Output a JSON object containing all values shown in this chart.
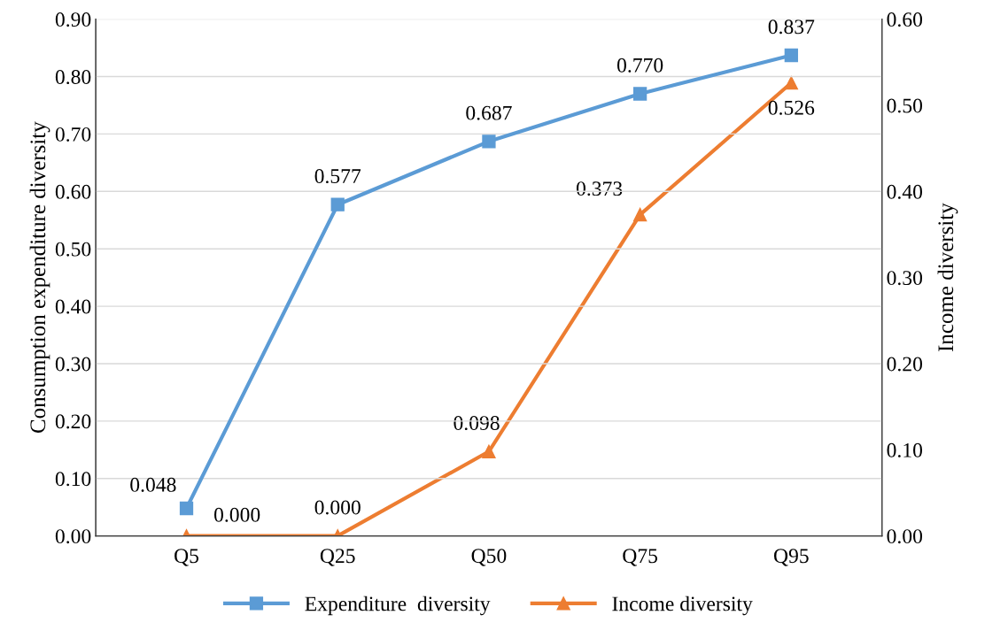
{
  "chart_data": {
    "type": "line",
    "categories": [
      "Q5",
      "Q25",
      "Q50",
      "Q75",
      "Q95"
    ],
    "ylabel": "Consumption expenditure diversity",
    "y2label": "Income diversity",
    "series": [
      {
        "name": "Expenditure  diversity",
        "color": "#5b9bd5",
        "marker": "square",
        "values": [
          0.048,
          0.577,
          0.687,
          0.77,
          0.837
        ],
        "value_labels": [
          "0.048",
          "0.577",
          "0.687",
          "0.770",
          "0.837"
        ]
      },
      {
        "name": "Income diversity",
        "color": "#ed7d31",
        "marker": "triangle",
        "axis": "y2",
        "values": [
          0.0,
          0.0,
          0.098,
          0.373,
          0.526
        ],
        "value_labels": [
          "0.000",
          "0.000",
          "0.098",
          "0.373",
          "0.526"
        ]
      }
    ],
    "ylim": [
      0,
      0.9
    ],
    "yticks": [
      {
        "value": 0,
        "label": "0.00"
      },
      {
        "value": 0.1,
        "label": "0.10"
      },
      {
        "value": 0.2,
        "label": "0.20"
      },
      {
        "value": 0.3,
        "label": "0.30"
      },
      {
        "value": 0.4,
        "label": "0.40"
      },
      {
        "value": 0.5,
        "label": "0.50"
      },
      {
        "value": 0.6,
        "label": "0.60"
      },
      {
        "value": 0.7,
        "label": "0.70"
      },
      {
        "value": 0.8,
        "label": "0.80"
      },
      {
        "value": 0.9,
        "label": "0.90"
      }
    ],
    "y2lim": [
      0,
      0.6
    ],
    "y2ticks": [
      {
        "value": 0,
        "label": "0.00"
      },
      {
        "value": 0.1,
        "label": "0.10"
      },
      {
        "value": 0.2,
        "label": "0.20"
      },
      {
        "value": 0.3,
        "label": "0.30"
      },
      {
        "value": 0.4,
        "label": "0.40"
      },
      {
        "value": 0.5,
        "label": "0.50"
      },
      {
        "value": 0.6,
        "label": "0.60"
      }
    ],
    "grid": "y",
    "legend": "bottom",
    "line_style": "solid"
  }
}
